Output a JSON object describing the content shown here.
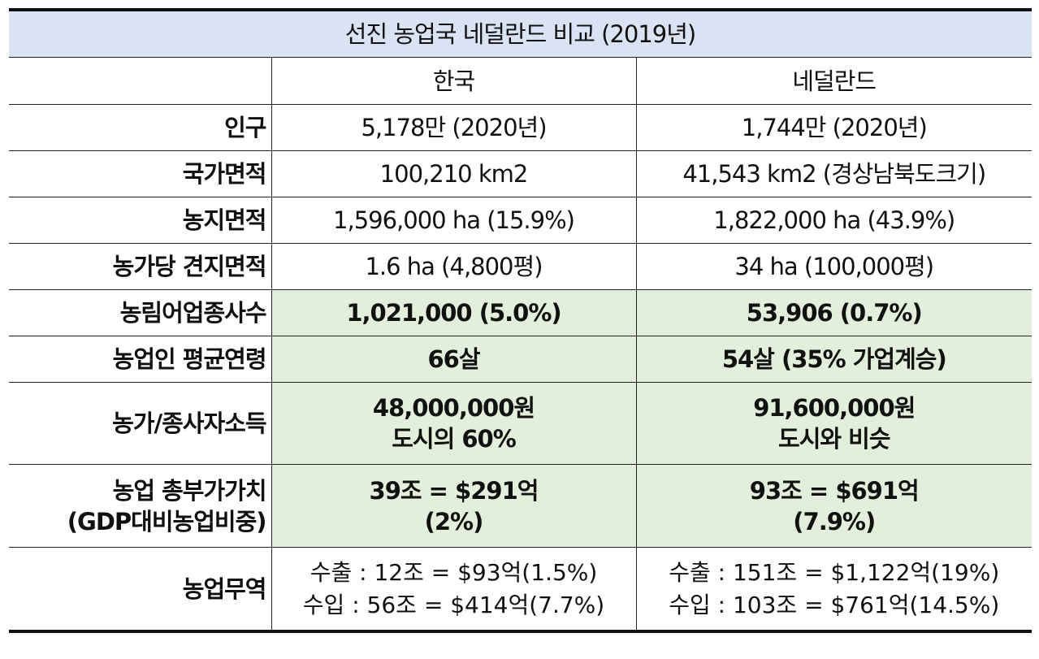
{
  "title": "선진 농업국 네덜란드 비교 (2019년)",
  "columns": [
    "",
    "한국",
    "네덜란드"
  ],
  "rows": [
    {
      "label": [
        "인구"
      ],
      "korea": [
        "5,178만 (2020년)"
      ],
      "netherlands": [
        "1,744만 (2020년)"
      ],
      "highlight": false
    },
    {
      "label": [
        "국가면적"
      ],
      "korea": [
        "100,210 km2"
      ],
      "netherlands": [
        "41,543 km2 (경상남북도크기)"
      ],
      "highlight": false
    },
    {
      "label": [
        "농지면적"
      ],
      "korea": [
        "1,596,000 ha (15.9%)"
      ],
      "netherlands": [
        "1,822,000 ha (43.9%)"
      ],
      "highlight": false
    },
    {
      "label": [
        "농가당 견지면적"
      ],
      "korea": [
        "1.6 ha (4,800평)"
      ],
      "netherlands": [
        "34 ha (100,000평)"
      ],
      "highlight": false
    },
    {
      "label": [
        "농림어업종사수"
      ],
      "korea": [
        "1,021,000 (5.0%)"
      ],
      "netherlands": [
        "53,906 (0.7%)"
      ],
      "highlight": true
    },
    {
      "label": [
        "농업인 평균연령"
      ],
      "korea": [
        "66살"
      ],
      "netherlands": [
        "54살 (35% 가업계승)"
      ],
      "highlight": true
    },
    {
      "label": [
        "농가/종사자소득"
      ],
      "korea": [
        "48,000,000원",
        "도시의 60%"
      ],
      "netherlands": [
        "91,600,000원",
        "도시와 비슷"
      ],
      "highlight": true
    },
    {
      "label": [
        "농업 총부가가치",
        "(GDP대비농업비중)"
      ],
      "korea": [
        "39조 = $291억",
        "(2%)"
      ],
      "netherlands": [
        "93조 = $691억",
        "(7.9%)"
      ],
      "highlight": true
    },
    {
      "label": [
        "농업무역"
      ],
      "korea": [
        "수출 : 12조 = $93억(1.5%)",
        "수입 : 56조 = $414억(7.7%)"
      ],
      "netherlands": [
        "수출 : 151조 = $1,122억(19%)",
        "수입 : 103조 = $761억(14.5%)"
      ],
      "highlight": false
    }
  ],
  "colors": {
    "title_bg": "#dae3f3",
    "highlight_bg": "#e2efda",
    "border": "#222222"
  }
}
